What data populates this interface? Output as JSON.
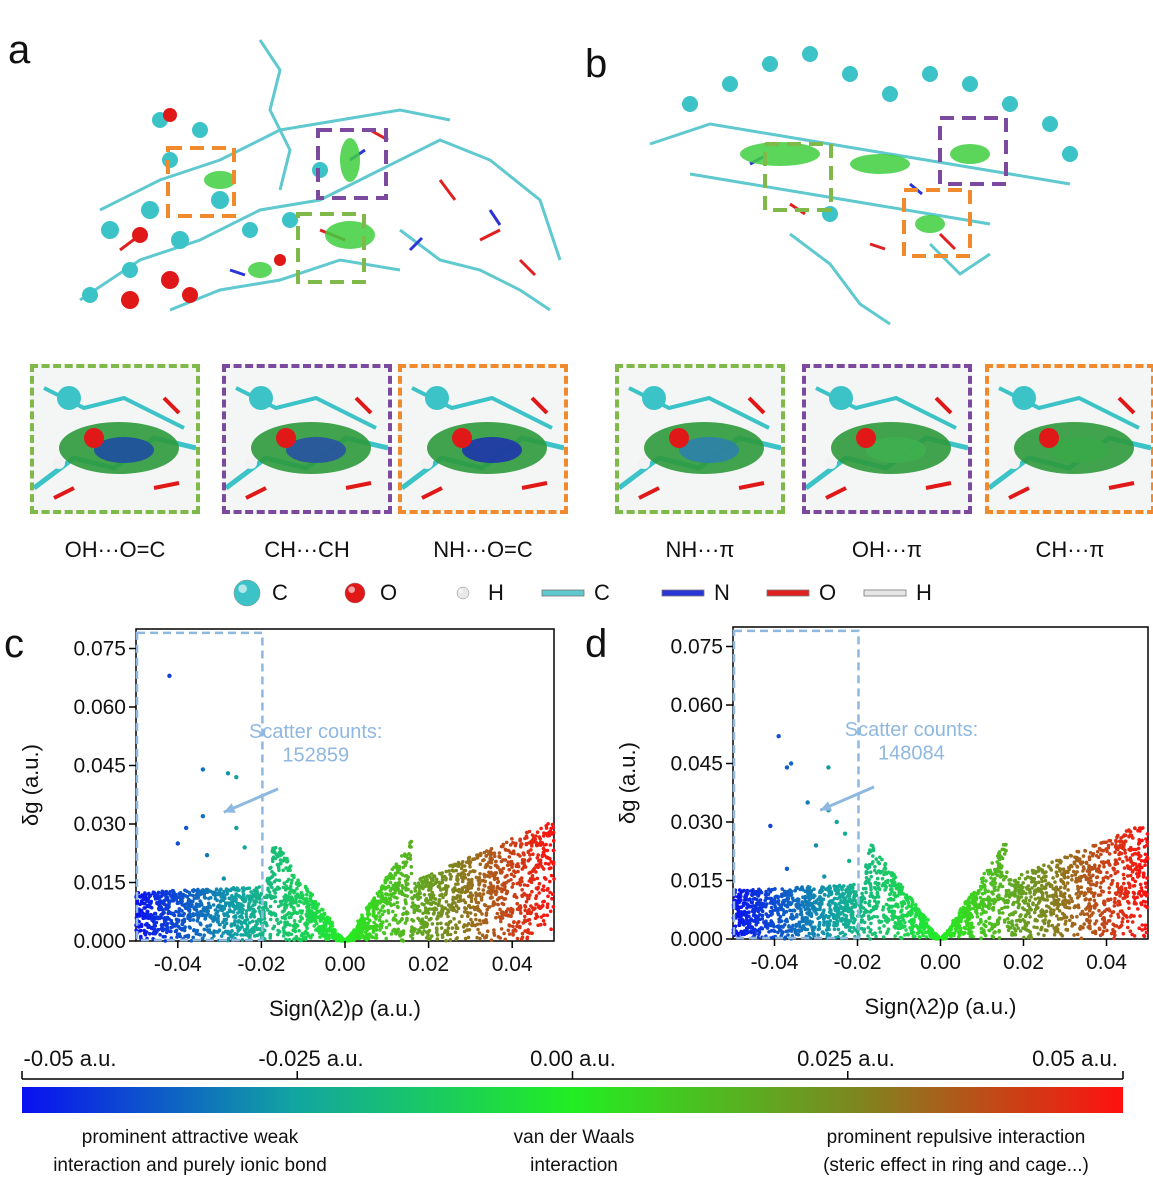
{
  "panels": {
    "a": "a",
    "b": "b",
    "c": "c",
    "d": "d"
  },
  "insets": [
    {
      "label": "OH···O=C",
      "color": "#7fb94a"
    },
    {
      "label": "CH···CH",
      "color": "#7b4a9e"
    },
    {
      "label": "NH···O=C",
      "color": "#f08a2c"
    },
    {
      "label": "NH···π",
      "color": "#7fb94a"
    },
    {
      "label": "OH···π",
      "color": "#7b4a9e"
    },
    {
      "label": "CH···π",
      "color": "#f08a2c"
    }
  ],
  "atom_legend": [
    {
      "symbol": "C",
      "kind": "ball",
      "color": "#3cc3c8"
    },
    {
      "symbol": "O",
      "kind": "ball",
      "color": "#e01818"
    },
    {
      "symbol": "H",
      "kind": "ball",
      "color": "#e8e8e8"
    },
    {
      "symbol": "C",
      "kind": "stick",
      "color": "#5fc9cf"
    },
    {
      "symbol": "N",
      "kind": "stick",
      "color": "#2a35d8"
    },
    {
      "symbol": "O",
      "kind": "stick",
      "color": "#e02020"
    },
    {
      "symbol": "H",
      "kind": "stick",
      "color": "#e6e6e6"
    }
  ],
  "chart_data": [
    {
      "type": "scatter",
      "panel": "c",
      "xlabel": "Sign(λ2)ρ (a.u.)",
      "ylabel": "δg (a.u.)",
      "xlim": [
        -0.05,
        0.05
      ],
      "ylim": [
        0.0,
        0.08
      ],
      "xticks": [
        "-0.04",
        "-0.02",
        "0.00",
        "0.02",
        "0.04"
      ],
      "yticks": [
        "0.000",
        "0.015",
        "0.030",
        "0.045",
        "0.060",
        "0.075"
      ],
      "annotation": {
        "line1": "Scatter counts:",
        "line2": "152859"
      },
      "highlight_region": {
        "x": [
          -0.05,
          -0.02
        ],
        "y": [
          0.0,
          0.079
        ]
      },
      "outliers": [
        [
          -0.042,
          0.068
        ],
        [
          -0.034,
          0.044
        ],
        [
          -0.028,
          0.043
        ],
        [
          -0.026,
          0.042
        ],
        [
          -0.034,
          0.032
        ],
        [
          -0.038,
          0.029
        ],
        [
          -0.04,
          0.025
        ],
        [
          -0.033,
          0.022
        ],
        [
          -0.026,
          0.029
        ],
        [
          -0.024,
          0.024
        ],
        [
          -0.029,
          0.016
        ],
        [
          -0.034,
          0.013
        ],
        [
          -0.03,
          0.012
        ]
      ],
      "envelope": {
        "left_peak": 0.026,
        "right_peak": 0.031
      }
    },
    {
      "type": "scatter",
      "panel": "d",
      "xlabel": "Sign(λ2)ρ (a.u.)",
      "ylabel": "δg (a.u.)",
      "xlim": [
        -0.05,
        0.05
      ],
      "ylim": [
        0.0,
        0.08
      ],
      "xticks": [
        "-0.04",
        "-0.02",
        "0.00",
        "0.02",
        "0.04"
      ],
      "yticks": [
        "0.000",
        "0.015",
        "0.030",
        "0.045",
        "0.060",
        "0.075"
      ],
      "annotation": {
        "line1": "Scatter counts:",
        "line2": "148084"
      },
      "highlight_region": {
        "x": [
          -0.05,
          -0.02
        ],
        "y": [
          0.0,
          0.079
        ]
      },
      "outliers": [
        [
          -0.039,
          0.052
        ],
        [
          -0.037,
          0.044
        ],
        [
          -0.036,
          0.045
        ],
        [
          -0.027,
          0.044
        ],
        [
          -0.032,
          0.035
        ],
        [
          -0.027,
          0.033
        ],
        [
          -0.041,
          0.029
        ],
        [
          -0.025,
          0.03
        ],
        [
          -0.03,
          0.024
        ],
        [
          -0.023,
          0.027
        ],
        [
          -0.037,
          0.018
        ],
        [
          -0.028,
          0.016
        ],
        [
          -0.022,
          0.02
        ]
      ],
      "envelope": {
        "left_peak": 0.025,
        "right_peak": 0.03
      }
    }
  ],
  "colorbar": {
    "ticks": [
      "-0.05 a.u.",
      "-0.025 a.u.",
      "0.00 a.u.",
      "0.025 a.u.",
      "0.05 a.u."
    ],
    "colors": [
      "#0a10f0",
      "#12a6a0",
      "#22ee22",
      "#7a8a20",
      "#ff1010"
    ],
    "desc_left_1": "prominent attractive weak",
    "desc_left_2": "interaction and purely ionic bond",
    "desc_mid_1": "van der Waals",
    "desc_mid_2": "interaction",
    "desc_right_1": "prominent repulsive interaction",
    "desc_right_2": "(steric effect in ring and cage...)"
  }
}
